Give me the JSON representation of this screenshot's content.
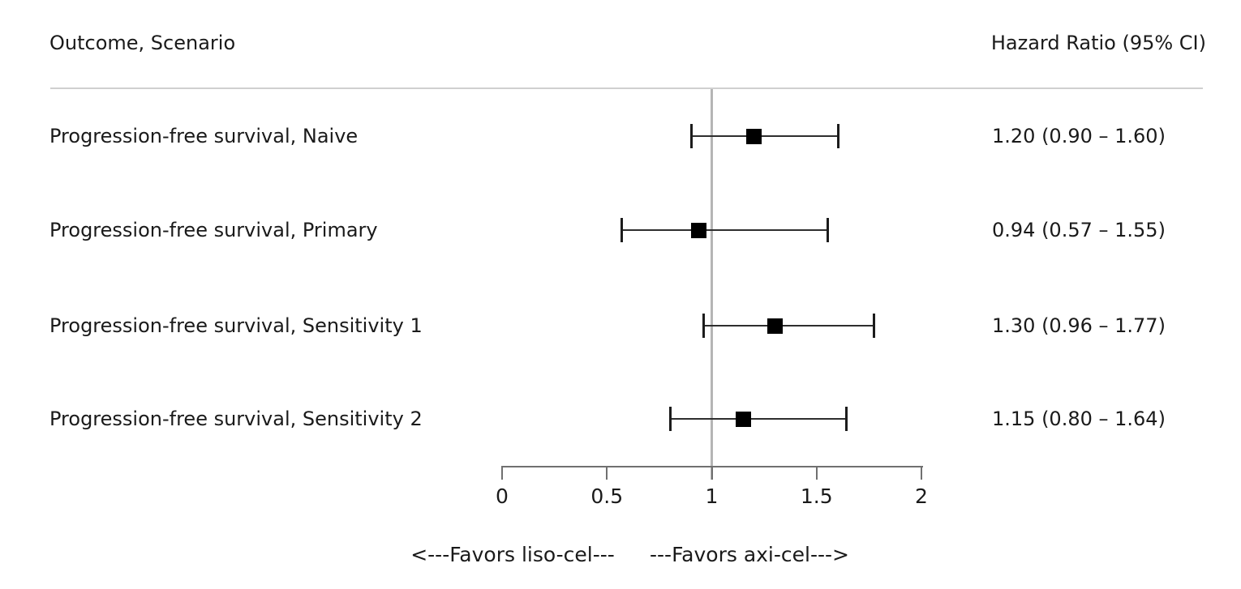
{
  "chart_data": {
    "type": "forest",
    "columns": {
      "left_header": "Outcome, Scenario",
      "right_header": "Hazard Ratio (95% CI)"
    },
    "rows": [
      {
        "label": "Progression-free survival, Naive",
        "hr": 1.2,
        "ci_low": 0.9,
        "ci_high": 1.6,
        "hr_text": "1.20 (0.90 – 1.60)"
      },
      {
        "label": "Progression-free survival, Primary",
        "hr": 0.94,
        "ci_low": 0.57,
        "ci_high": 1.55,
        "hr_text": "0.94 (0.57 – 1.55)"
      },
      {
        "label": "Progression-free survival, Sensitivity 1",
        "hr": 1.3,
        "ci_low": 0.96,
        "ci_high": 1.77,
        "hr_text": "1.30 (0.96 – 1.77)"
      },
      {
        "label": "Progression-free survival, Sensitivity 2",
        "hr": 1.15,
        "ci_low": 0.8,
        "ci_high": 1.64,
        "hr_text": "1.15 (0.80 – 1.64)"
      }
    ],
    "x_axis": {
      "range": [
        0,
        2
      ],
      "ticks": [
        0,
        0.5,
        1,
        1.5,
        2
      ],
      "tick_labels": [
        "0",
        "0.5",
        "1",
        "1.5",
        "2"
      ],
      "reference_line": 1,
      "grid": false
    },
    "footer": {
      "left_arrow_label": "<---Favors liso-cel---",
      "right_arrow_label": "---Favors axi-cel--->"
    },
    "colors": {
      "text": "#1a1a1a",
      "marker": "#000000",
      "ci_line": "#2e2e2e",
      "cap": "#1c1c1c",
      "reference_line": "#b5b5b5",
      "axis": "#707070",
      "divider": "#d0d0d0"
    }
  }
}
